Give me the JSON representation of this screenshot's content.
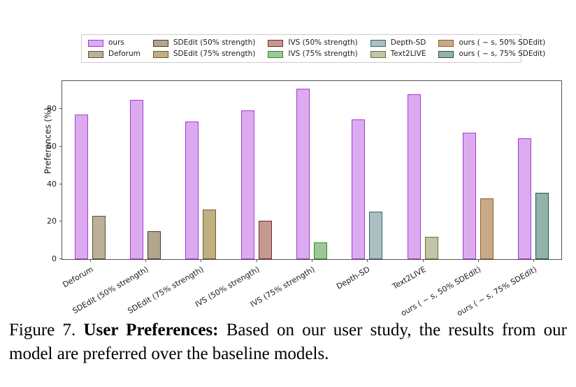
{
  "figure": {
    "caption_prefix": "Figure 7.",
    "caption_bold": "User Preferences:",
    "caption_rest": "Based on our user study, the results from our model are preferred over the baseline models."
  },
  "chart_data": {
    "type": "bar",
    "title": "",
    "xlabel": "",
    "ylabel": "Preferences (%)",
    "ylim": [
      0,
      95
    ],
    "yticks": [
      0,
      20,
      40,
      60,
      80
    ],
    "grid": false,
    "legend_position": "top-center",
    "ours_label": "ours",
    "ours_color": {
      "fill": "#dcabef",
      "border": "#a43bd3"
    },
    "categories": [
      "Deforum",
      "SDEdit (50% strength)",
      "SDEdit (75% strength)",
      "IVS (50% strength)",
      "IVS (75% strength)",
      "Depth-SD",
      "Text2LIVE",
      "ours ( ~ s, 50% SDEdit)",
      "ours ( ~ s, 75% SDEdit)"
    ],
    "pairs": [
      {
        "category": "Deforum",
        "ours": 77,
        "baseline": 23,
        "fill": "#bcb09b",
        "border": "#5e5132"
      },
      {
        "category": "SDEdit (50% strength)",
        "ours": 85,
        "baseline": 15,
        "fill": "#b2a78e",
        "border": "#473f26"
      },
      {
        "category": "SDEdit (75% strength)",
        "ours": 73.5,
        "baseline": 26.5,
        "fill": "#c0b080",
        "border": "#6b5b22"
      },
      {
        "category": "IVS (50% strength)",
        "ours": 79.5,
        "baseline": 20.5,
        "fill": "#c39a92",
        "border": "#7c2323"
      },
      {
        "category": "IVS (75% strength)",
        "ours": 91,
        "baseline": 9,
        "fill": "#9cc897",
        "border": "#2f8b25"
      },
      {
        "category": "Depth-SD",
        "ours": 74.5,
        "baseline": 25.5,
        "fill": "#adbfc3",
        "border": "#32656c"
      },
      {
        "category": "Text2LIVE",
        "ours": 88,
        "baseline": 12,
        "fill": "#c1c4a6",
        "border": "#687036"
      },
      {
        "category": "ours ( ~ s, 50% SDEdit)",
        "ours": 67.5,
        "baseline": 32.5,
        "fill": "#c8aa8b",
        "border": "#8a5f22"
      },
      {
        "category": "ours ( ~ s, 75% SDEdit)",
        "ours": 64.5,
        "baseline": 35.5,
        "fill": "#92b2ab",
        "border": "#20574f"
      }
    ]
  }
}
